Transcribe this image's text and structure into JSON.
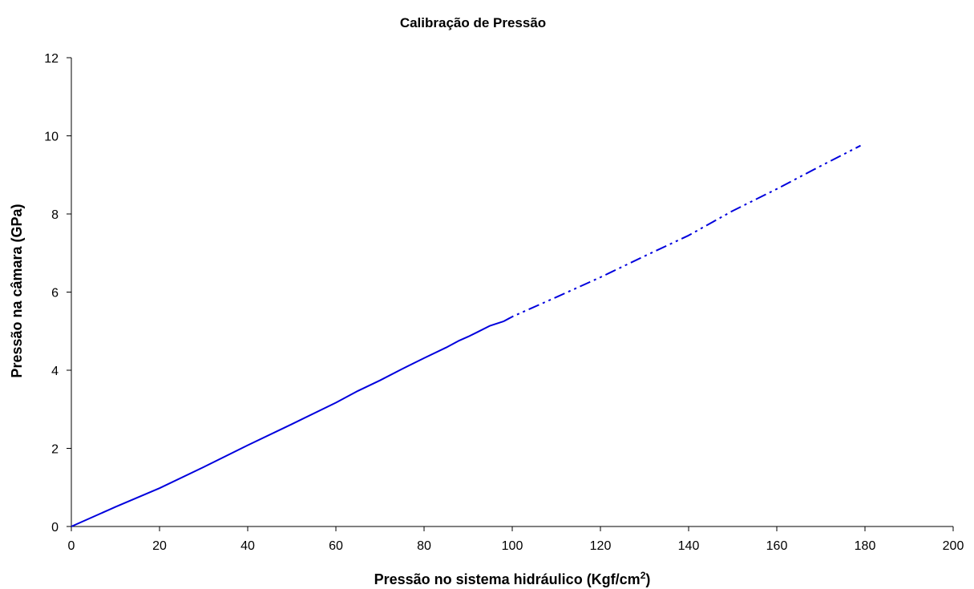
{
  "chart_data": {
    "type": "line",
    "title": "Calibração de Pressão",
    "xlabel": "Pressão no sistema hidráulico (Kgf/cm",
    "xlabel_superscript": "2",
    "xlabel_suffix": ")",
    "ylabel": "Pressão na câmara (GPa)",
    "xlim": [
      0,
      200
    ],
    "ylim": [
      0,
      12
    ],
    "x_ticks": [
      0,
      20,
      40,
      60,
      80,
      100,
      120,
      140,
      160,
      180,
      200
    ],
    "y_ticks": [
      0,
      2,
      4,
      6,
      8,
      10,
      12
    ],
    "grid": false,
    "legend": "none",
    "series": [
      {
        "style": "solid",
        "color": "#0000dd",
        "x": [
          0,
          10,
          20,
          30,
          40,
          50,
          60,
          65,
          70,
          75,
          80,
          85,
          88,
          90,
          92,
          95,
          98
        ],
        "y": [
          0,
          0.5,
          0.98,
          1.52,
          2.08,
          2.62,
          3.17,
          3.47,
          3.74,
          4.03,
          4.31,
          4.58,
          4.76,
          4.86,
          4.97,
          5.14,
          5.25
        ]
      },
      {
        "style": "dash-dot-dot",
        "color": "#0000dd",
        "x": [
          98,
          100,
          110,
          120,
          130,
          140,
          150,
          160,
          170,
          179
        ],
        "y": [
          5.25,
          5.37,
          5.87,
          6.38,
          6.92,
          7.45,
          8.08,
          8.64,
          9.23,
          9.75
        ]
      }
    ]
  }
}
